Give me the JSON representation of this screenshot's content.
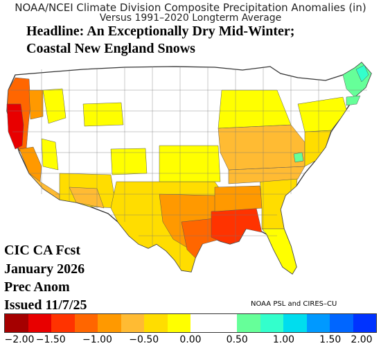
{
  "map_title": {
    "line1": "NOAA/NCEI Climate Division Composite Precipitation Anomalies (in)",
    "line2": "Versus 1991–2020 Longterm Average"
  },
  "headline": {
    "line1": "Headline: An Exceptionally Dry Mid-Winter;",
    "line2": "Coastal New England Snows"
  },
  "forecast_label": {
    "line1": "CIC CA Fcst",
    "line2": "January 2026",
    "line3": "Prec Anom",
    "line4": "Issued 11/7/25"
  },
  "credit": "NOAA PSL and CIRES–CU",
  "colorbar": {
    "colors": [
      "#a50000",
      "#e80000",
      "#ff3300",
      "#ff6600",
      "#ff9900",
      "#ffbb33",
      "#ffdd00",
      "#ffff00",
      "#ffffff",
      "#ffffff",
      "#66ff99",
      "#33ffcc",
      "#00ddee",
      "#0099ff",
      "#0066ff",
      "#0033ff"
    ],
    "tick_labels": [
      "−2.00",
      "−1.50",
      "−1.00",
      "−0.50",
      "0.00",
      "0.50",
      "1.00",
      "1.50",
      "2.00"
    ]
  },
  "map_colors": {
    "white": "#ffffff",
    "yellow": "#ffff00",
    "gold": "#ffdd00",
    "amber": "#ffbb33",
    "orange": "#ff9900",
    "dark_orange": "#ff6600",
    "red_orange": "#ff3300",
    "red": "#e80000",
    "green": "#66ff99",
    "cyan": "#33ffcc",
    "border": "#555555"
  }
}
